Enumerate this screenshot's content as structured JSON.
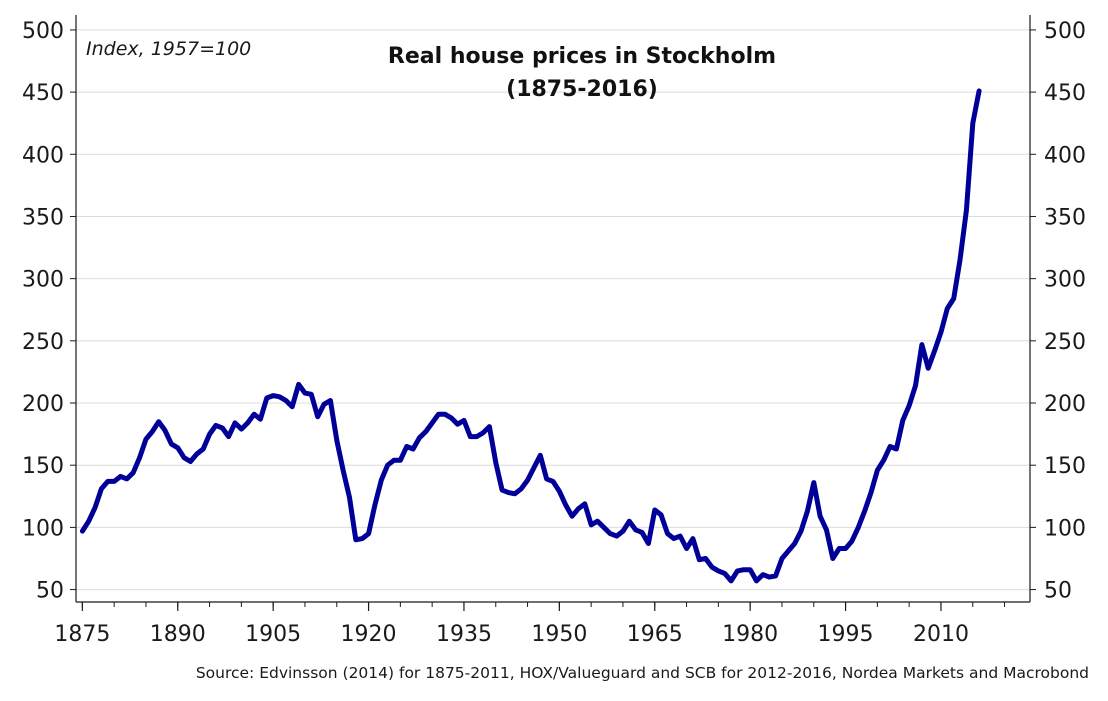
{
  "chart_data": {
    "type": "line",
    "title_line1": "Real house prices in Stockholm",
    "title_line2": "(1875-2016)",
    "unit_note": "Index, 1957=100",
    "source": "Source: Edvinsson (2014) for 1875-2011, HOX/Valueguard and SCB for 2012-2016, Nordea Markets and Macrobond",
    "xlim": [
      1874,
      2024
    ],
    "ylim": [
      40,
      512
    ],
    "x_ticks": [
      "1875",
      "1890",
      "1905",
      "1920",
      "1935",
      "1950",
      "1965",
      "1980",
      "1995",
      "2010"
    ],
    "y_ticks": [
      "50",
      "100",
      "150",
      "200",
      "250",
      "300",
      "350",
      "400",
      "450",
      "500"
    ],
    "grid": true,
    "line_color": "#000099",
    "series": [
      {
        "x": [
          1875,
          1876,
          1877,
          1878,
          1879,
          1880,
          1881,
          1882,
          1883,
          1884,
          1885,
          1886,
          1887,
          1888,
          1889,
          1890,
          1891,
          1892,
          1893,
          1894,
          1895,
          1896,
          1897,
          1898,
          1899,
          1900,
          1901,
          1902,
          1903,
          1904,
          1905,
          1906,
          1907,
          1908,
          1909,
          1910,
          1911,
          1912,
          1913,
          1914,
          1915,
          1916,
          1917,
          1918,
          1919,
          1920,
          1921,
          1922,
          1923,
          1924,
          1925,
          1926,
          1927,
          1928,
          1929,
          1930,
          1931,
          1932,
          1933,
          1934,
          1935,
          1936,
          1937,
          1938,
          1939,
          1940,
          1941,
          1942,
          1943,
          1944,
          1945,
          1946,
          1947,
          1948,
          1949,
          1950,
          1951,
          1952,
          1953,
          1954,
          1955,
          1956,
          1957,
          1958,
          1959,
          1960,
          1961,
          1962,
          1963,
          1964,
          1965,
          1966,
          1967,
          1968,
          1969,
          1970,
          1971,
          1972,
          1973,
          1974,
          1975,
          1976,
          1977,
          1978,
          1979,
          1980,
          1981,
          1982,
          1983,
          1984,
          1985,
          1986,
          1987,
          1988,
          1989,
          1990,
          1991,
          1992,
          1993,
          1994,
          1995,
          1996,
          1997,
          1998,
          1999,
          2000,
          2001,
          2002,
          2003,
          2004,
          2005,
          2006,
          2007,
          2008,
          2009,
          2010,
          2011,
          2012,
          2013,
          2014,
          2015,
          2016
        ],
        "y": [
          97,
          105,
          116,
          131,
          137,
          137,
          141,
          139,
          144,
          156,
          171,
          177,
          185,
          178,
          167,
          164,
          156,
          153,
          159,
          163,
          175,
          182,
          180,
          173,
          184,
          179,
          184,
          191,
          187,
          204,
          206,
          205,
          202,
          197,
          215,
          208,
          207,
          189,
          199,
          202,
          170,
          146,
          124,
          90,
          91,
          95,
          118,
          138,
          150,
          154,
          154,
          165,
          163,
          172,
          177,
          184,
          191,
          191,
          188,
          183,
          186,
          173,
          173,
          176,
          181,
          152,
          130,
          128,
          127,
          131,
          138,
          148,
          158,
          139,
          137,
          129,
          118,
          109,
          115,
          119,
          102,
          105,
          100,
          95,
          93,
          97,
          105,
          98,
          96,
          87,
          114,
          110,
          95,
          91,
          93,
          83,
          91,
          74,
          75,
          68,
          65,
          63,
          57,
          65,
          66,
          66,
          57,
          62,
          60,
          61,
          75,
          81,
          87,
          97,
          113,
          136,
          109,
          98,
          75,
          83,
          83,
          89,
          100,
          113,
          128,
          146,
          154,
          165,
          163,
          186,
          198,
          214,
          247,
          228,
          242,
          257,
          276,
          284,
          315,
          355,
          425,
          451
        ]
      }
    ]
  }
}
